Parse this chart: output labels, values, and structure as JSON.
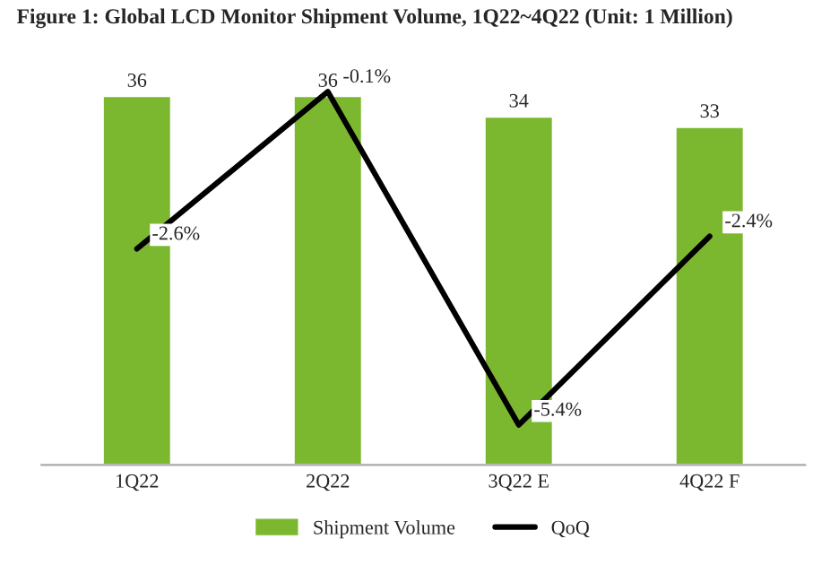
{
  "chart_data": {
    "type": "bar",
    "title": "Figure 1: Global LCD Monitor Shipment Volume, 1Q22~4Q22 (Unit: 1 Million)",
    "categories": [
      "1Q22",
      "2Q22",
      "3Q22 E",
      "4Q22 F"
    ],
    "series": [
      {
        "name": "Shipment Volume",
        "color": "#7cb82f",
        "values": [
          36,
          36,
          34,
          33
        ],
        "value_labels": [
          "36",
          "36",
          "34",
          "33"
        ]
      },
      {
        "name": "QoQ",
        "type": "line",
        "axis": "y2",
        "color": "#000000",
        "values": [
          -2.6,
          -0.1,
          -5.4,
          -2.4
        ],
        "value_labels": [
          "-2.6%",
          "-0.1%",
          "-5.4%",
          "-2.4%"
        ]
      }
    ],
    "tick_labels": "x",
    "legend": "bottom",
    "grid": false,
    "marker": "none",
    "line_style": "solid"
  }
}
